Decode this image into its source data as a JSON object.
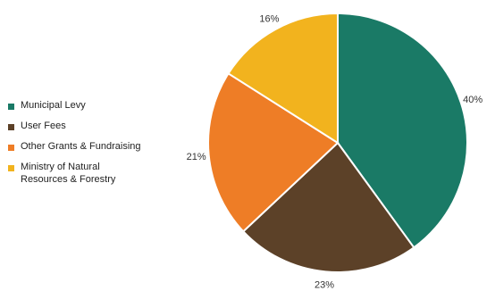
{
  "chart_data": {
    "type": "pie",
    "title": "",
    "legend_position": "left",
    "slices": [
      {
        "label": "Municipal Levy",
        "value": 40,
        "value_label": "40%",
        "color": "#1a7a66"
      },
      {
        "label": "User Fees",
        "value": 23,
        "value_label": "23%",
        "color": "#5c4128"
      },
      {
        "label": "Other Grants & Fundraising",
        "value": 21,
        "value_label": "21%",
        "color": "#ee7d26"
      },
      {
        "label": "Ministry of Natural Resources & Forestry",
        "value": 16,
        "value_label": "16%",
        "color": "#f2b31e"
      }
    ],
    "legend": [
      {
        "lines": [
          "Municipal Levy"
        ],
        "color": "#1a7a66"
      },
      {
        "lines": [
          "User Fees"
        ],
        "color": "#5c4128"
      },
      {
        "lines": [
          "Other Grants & Fundraising"
        ],
        "color": "#ee7d26"
      },
      {
        "lines": [
          "Ministry of Natural",
          "Resources & Forestry"
        ],
        "color": "#f2b31e"
      }
    ]
  }
}
